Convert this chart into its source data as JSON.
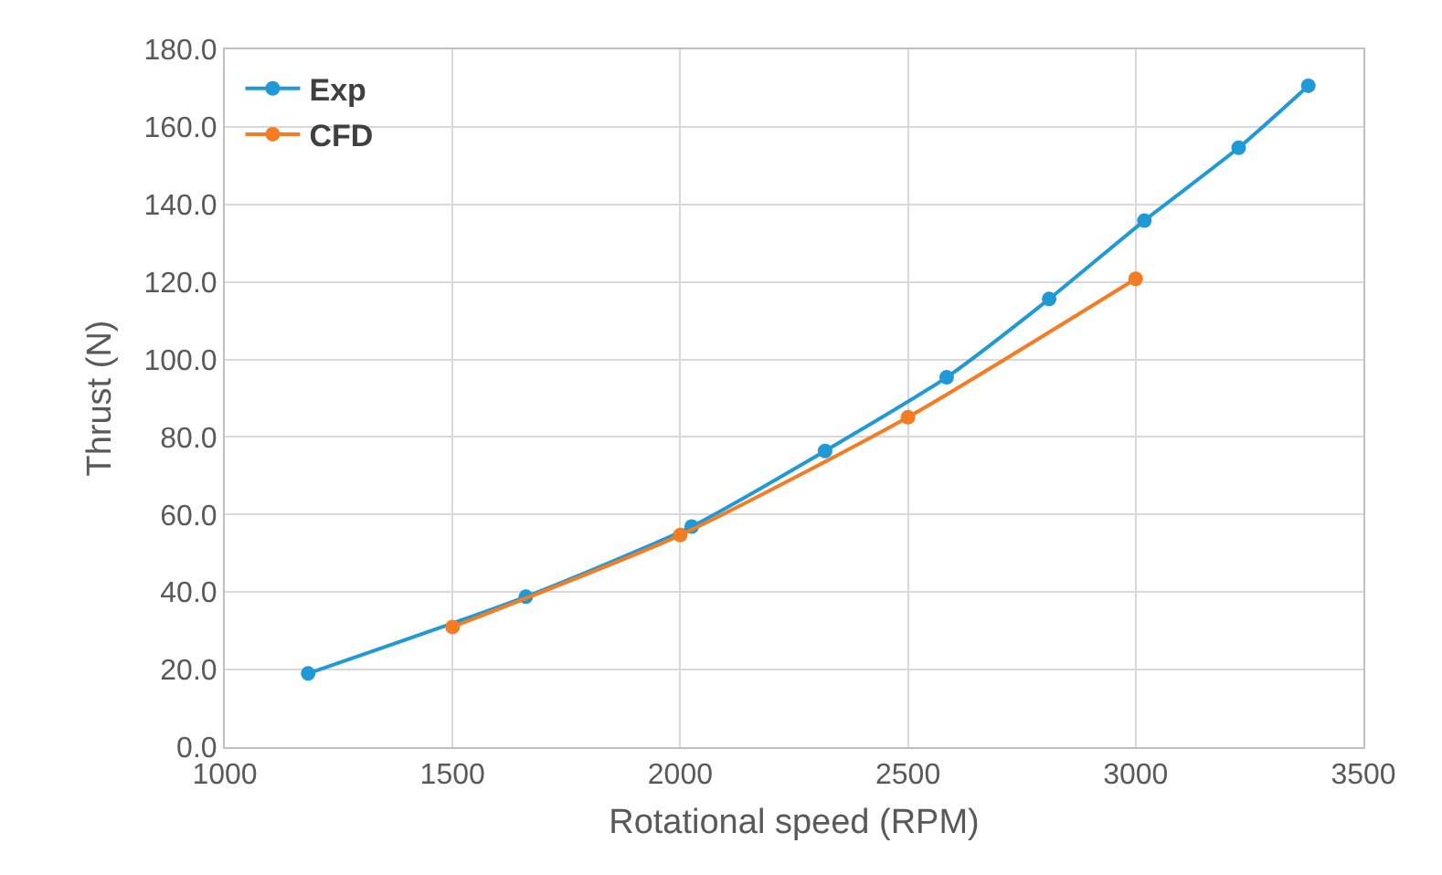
{
  "chart_data": {
    "type": "line",
    "xlabel": "Rotational speed (RPM)",
    "ylabel": "Thrust (N)",
    "series": [
      {
        "name": "Exp",
        "color": "#1f9ad6",
        "x": [
          1183,
          1661,
          2025,
          2318,
          2585,
          2810,
          3019,
          3226,
          3379
        ],
        "values": [
          19.0,
          38.8,
          56.9,
          76.4,
          95.4,
          115.6,
          135.8,
          154.6,
          170.6
        ]
      },
      {
        "name": "CFD",
        "color": "#f57c22",
        "x": [
          1500,
          2000,
          2500,
          3000
        ],
        "values": [
          31.0,
          54.7,
          85.1,
          120.8
        ]
      }
    ],
    "xlim": [
      1000,
      3500
    ],
    "xticks": [
      1000,
      1500,
      2000,
      2500,
      3000,
      3500
    ],
    "ylim": [
      0,
      180
    ],
    "yticks": [
      {
        "value": 0,
        "label": "0.0"
      },
      {
        "value": 20,
        "label": "20.0"
      },
      {
        "value": 40,
        "label": "40.0"
      },
      {
        "value": 60,
        "label": "60.0"
      },
      {
        "value": 80,
        "label": "80.0"
      },
      {
        "value": 100,
        "label": "100.0"
      },
      {
        "value": 120,
        "label": "120.0"
      },
      {
        "value": 140,
        "label": "140.0"
      },
      {
        "value": 160,
        "label": "160.0"
      },
      {
        "value": 180,
        "label": "180.0"
      }
    ],
    "grid": true,
    "legend": "top left",
    "marker": "circle",
    "line_style": "solid"
  }
}
